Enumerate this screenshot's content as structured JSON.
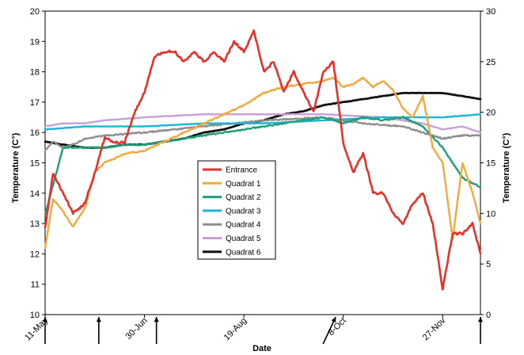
{
  "chart_data": {
    "type": "line",
    "title": "",
    "xlabel": "Date",
    "ylabel": "Temperature (C°)",
    "y2label": "Temperature (C°)",
    "ylim": [
      10,
      20
    ],
    "y2lim": [
      0,
      30
    ],
    "xlim": [
      "2011-05-11",
      "2011-12-16"
    ],
    "x_ticks": [
      {
        "label": "11-May",
        "date": "2011-05-11"
      },
      {
        "label": "30-Jun",
        "date": "2011-06-30"
      },
      {
        "label": "19-Aug",
        "date": "2011-08-19"
      },
      {
        "label": "8-Oct",
        "date": "2011-10-08"
      },
      {
        "label": "27-Nov",
        "date": "2011-11-27"
      }
    ],
    "y_ticks": [
      10,
      11,
      12,
      13,
      14,
      15,
      16,
      17,
      18,
      19,
      20
    ],
    "y2_ticks": [
      0,
      5,
      10,
      15,
      20,
      25,
      30
    ],
    "grid": false,
    "legend_position": "center",
    "markers": [
      {
        "date": "2011-05-11",
        "style": "vertical"
      },
      {
        "date": "2011-06-07",
        "style": "vertical"
      },
      {
        "date": "2011-07-06",
        "style": "vertical"
      },
      {
        "date": "2011-10-03",
        "style": "diagonal"
      },
      {
        "date": "2011-12-16",
        "style": "vertical"
      }
    ],
    "series": [
      {
        "name": "Entrance",
        "color": "#e8302a",
        "axis": "right",
        "x": [
          "2011-05-11",
          "2011-05-15",
          "2011-05-20",
          "2011-05-25",
          "2011-05-31",
          "2011-06-05",
          "2011-06-10",
          "2011-06-15",
          "2011-06-20",
          "2011-06-25",
          "2011-06-30",
          "2011-07-05",
          "2011-07-10",
          "2011-07-15",
          "2011-07-20",
          "2011-07-25",
          "2011-07-30",
          "2011-08-04",
          "2011-08-09",
          "2011-08-14",
          "2011-08-19",
          "2011-08-24",
          "2011-08-29",
          "2011-09-03",
          "2011-09-08",
          "2011-09-13",
          "2011-09-18",
          "2011-09-23",
          "2011-09-28",
          "2011-10-03",
          "2011-10-08",
          "2011-10-13",
          "2011-10-18",
          "2011-10-23",
          "2011-10-28",
          "2011-11-02",
          "2011-11-07",
          "2011-11-12",
          "2011-11-17",
          "2011-11-22",
          "2011-11-27",
          "2011-12-02",
          "2011-12-07",
          "2011-12-12",
          "2011-12-16"
        ],
        "values": [
          8.5,
          14,
          12,
          10,
          11,
          14,
          17.5,
          17,
          17,
          20,
          22,
          25.5,
          26,
          26,
          25,
          26,
          25,
          26,
          25,
          27,
          26,
          28,
          24,
          25,
          22,
          24,
          22,
          20,
          24,
          25,
          17,
          14,
          16,
          12,
          12,
          10,
          9,
          11,
          12,
          9,
          2.5,
          8,
          8,
          9,
          6
        ]
      },
      {
        "name": "Quadrat 1",
        "axis": "left",
        "color": "#f2a93b",
        "x": [
          "2011-05-11",
          "2011-05-15",
          "2011-05-20",
          "2011-05-25",
          "2011-05-31",
          "2011-06-05",
          "2011-06-10",
          "2011-06-20",
          "2011-06-30",
          "2011-07-10",
          "2011-07-20",
          "2011-07-30",
          "2011-08-09",
          "2011-08-19",
          "2011-08-29",
          "2011-09-08",
          "2011-09-18",
          "2011-09-28",
          "2011-10-03",
          "2011-10-08",
          "2011-10-13",
          "2011-10-18",
          "2011-10-23",
          "2011-10-28",
          "2011-11-02",
          "2011-11-07",
          "2011-11-12",
          "2011-11-17",
          "2011-11-22",
          "2011-11-27",
          "2011-12-02",
          "2011-12-07",
          "2011-12-12",
          "2011-12-16"
        ],
        "values": [
          12.2,
          13.8,
          13.4,
          12.9,
          13.5,
          14.7,
          15.0,
          15.3,
          15.4,
          15.7,
          16.0,
          16.3,
          16.6,
          16.9,
          17.3,
          17.5,
          17.6,
          17.7,
          17.8,
          17.5,
          17.6,
          17.8,
          17.5,
          17.7,
          17.4,
          16.8,
          16.5,
          17.2,
          15.5,
          15.0,
          12.5,
          15.0,
          14.0,
          13.0
        ]
      },
      {
        "name": "Quadrat 2",
        "axis": "left",
        "color": "#1f9e78",
        "x": [
          "2011-05-11",
          "2011-05-20",
          "2011-05-31",
          "2011-06-10",
          "2011-06-20",
          "2011-06-30",
          "2011-07-10",
          "2011-07-20",
          "2011-07-30",
          "2011-08-09",
          "2011-08-19",
          "2011-08-29",
          "2011-09-08",
          "2011-09-18",
          "2011-09-28",
          "2011-10-08",
          "2011-10-18",
          "2011-10-28",
          "2011-11-07",
          "2011-11-17",
          "2011-11-27",
          "2011-12-07",
          "2011-12-16"
        ],
        "values": [
          13.3,
          15.5,
          15.5,
          15.5,
          15.6,
          15.6,
          15.7,
          15.8,
          15.9,
          16.0,
          16.1,
          16.2,
          16.3,
          16.4,
          16.5,
          16.3,
          16.5,
          16.4,
          16.5,
          16.2,
          15.5,
          14.5,
          14.2
        ]
      },
      {
        "name": "Quadrat 3",
        "axis": "left",
        "color": "#1fb5d6",
        "x": [
          "2011-05-11",
          "2011-05-31",
          "2011-06-30",
          "2011-07-30",
          "2011-08-29",
          "2011-09-28",
          "2011-10-28",
          "2011-11-27",
          "2011-12-16"
        ],
        "values": [
          16.1,
          16.2,
          16.2,
          16.3,
          16.3,
          16.4,
          16.5,
          16.5,
          16.6
        ]
      },
      {
        "name": "Quadrat 4",
        "axis": "left",
        "color": "#8e8e8e",
        "x": [
          "2011-05-11",
          "2011-05-15",
          "2011-05-20",
          "2011-05-25",
          "2011-05-31",
          "2011-06-10",
          "2011-06-30",
          "2011-07-30",
          "2011-08-29",
          "2011-09-28",
          "2011-10-18",
          "2011-11-07",
          "2011-11-27",
          "2011-12-07",
          "2011-12-16"
        ],
        "values": [
          15.4,
          15.7,
          15.5,
          15.6,
          15.8,
          15.9,
          16.0,
          16.2,
          16.4,
          16.5,
          16.3,
          16.2,
          15.8,
          15.9,
          15.9
        ]
      },
      {
        "name": "Quadrat 5",
        "axis": "left",
        "color": "#c8a0d6",
        "x": [
          "2011-05-11",
          "2011-05-20",
          "2011-05-31",
          "2011-06-10",
          "2011-06-30",
          "2011-07-30",
          "2011-08-29",
          "2011-09-28",
          "2011-10-28",
          "2011-11-17",
          "2011-11-27",
          "2011-12-07",
          "2011-12-16"
        ],
        "values": [
          16.2,
          16.3,
          16.3,
          16.4,
          16.5,
          16.6,
          16.6,
          16.6,
          16.5,
          16.3,
          16.1,
          16.2,
          16.0
        ]
      },
      {
        "name": "Quadrat 6",
        "axis": "left",
        "color": "#111111",
        "x": [
          "2011-05-11",
          "2011-05-20",
          "2011-05-31",
          "2011-06-10",
          "2011-06-20",
          "2011-06-30",
          "2011-07-10",
          "2011-07-20",
          "2011-07-30",
          "2011-08-09",
          "2011-08-19",
          "2011-08-29",
          "2011-09-08",
          "2011-09-18",
          "2011-09-28",
          "2011-10-08",
          "2011-10-18",
          "2011-10-28",
          "2011-11-07",
          "2011-11-17",
          "2011-11-27",
          "2011-12-07",
          "2011-12-16"
        ],
        "values": [
          15.7,
          15.6,
          15.5,
          15.5,
          15.6,
          15.6,
          15.7,
          15.8,
          16.0,
          16.1,
          16.3,
          16.4,
          16.6,
          16.7,
          16.9,
          17.0,
          17.1,
          17.2,
          17.3,
          17.3,
          17.3,
          17.2,
          17.1
        ]
      }
    ]
  }
}
